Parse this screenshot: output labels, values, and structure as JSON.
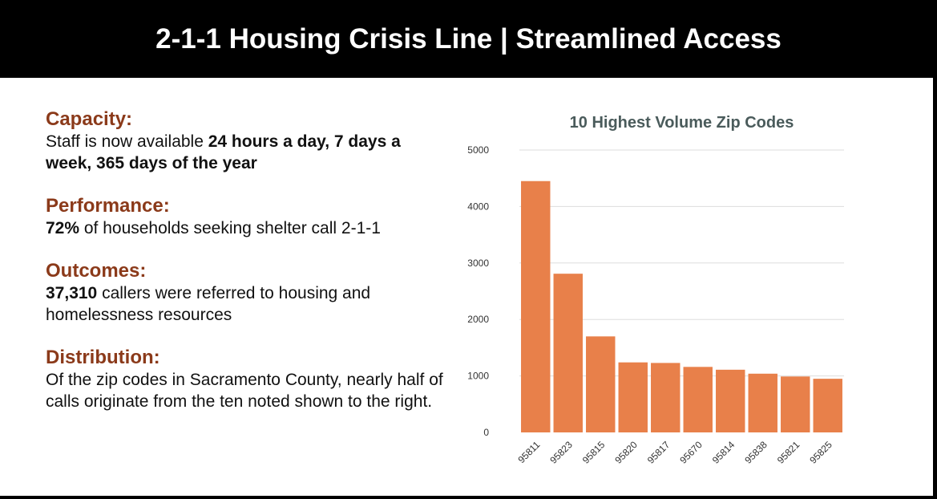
{
  "header": {
    "title": "2-1-1 Housing Crisis Line | Streamlined Access"
  },
  "sections": [
    {
      "heading": "Capacity:",
      "parts": [
        {
          "text": "Staff is now available ",
          "bold": false
        },
        {
          "text": "24 hours a day, 7 days a week, 365 days of the year",
          "bold": true
        }
      ]
    },
    {
      "heading": "Performance:",
      "parts": [
        {
          "text": "72%",
          "bold": true
        },
        {
          "text": " of households seeking shelter call 2-1-1",
          "bold": false
        }
      ]
    },
    {
      "heading": "Outcomes:",
      "parts": [
        {
          "text": "37,310",
          "bold": true
        },
        {
          "text": " callers were referred to housing and homelessness resources",
          "bold": false
        }
      ]
    },
    {
      "heading": "Distribution:",
      "parts": [
        {
          "text": "Of the zip codes in Sacramento County, nearly half of calls originate from the ten noted shown to the right.",
          "bold": false
        }
      ]
    }
  ],
  "chart_data": {
    "type": "bar",
    "title": "10 Highest Volume Zip Codes",
    "categories": [
      "95811",
      "95823",
      "95815",
      "95820",
      "95817",
      "95670",
      "95814",
      "95838",
      "95821",
      "95825"
    ],
    "values": [
      4450,
      2810,
      1700,
      1240,
      1230,
      1160,
      1110,
      1040,
      990,
      950
    ],
    "ylim": [
      0,
      5000
    ],
    "yticks": [
      0,
      1000,
      2000,
      3000,
      4000,
      5000
    ],
    "grid": true,
    "bar_color": "#E8804A",
    "title_color": "#4A5B5B"
  }
}
